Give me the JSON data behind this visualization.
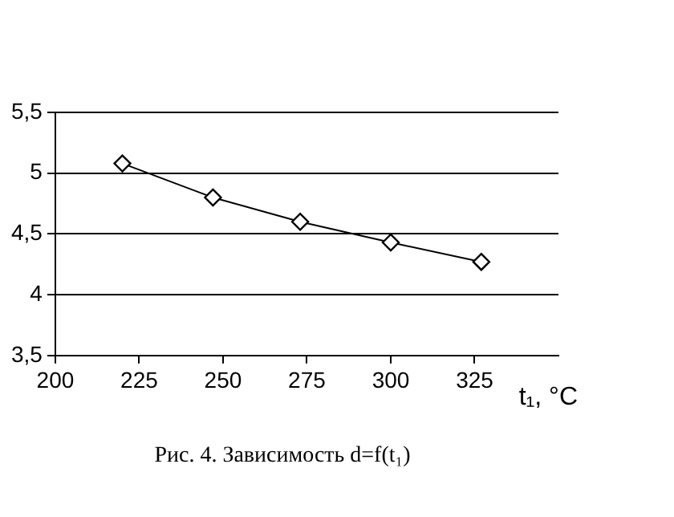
{
  "chart_data": {
    "type": "line",
    "title": "Рис. 4. Зависимость d=f(t₁)",
    "xlabel": "t₁, °C",
    "x": [
      220,
      247,
      273,
      300,
      327
    ],
    "series": [
      {
        "color": "#000000",
        "values": [
          5.08,
          4.8,
          4.6,
          4.43,
          4.27
        ]
      }
    ],
    "xlim": [
      200,
      350
    ],
    "xticks": [
      200,
      225,
      250,
      275,
      300,
      325
    ],
    "ylim": [
      3.5,
      5.5
    ],
    "yticks": [
      {
        "value": 3.5,
        "label": "3,5"
      },
      4,
      {
        "value": 4.5,
        "label": "4,5"
      },
      5,
      {
        "value": 5.5,
        "label": "5,5"
      }
    ],
    "grid": "y",
    "legend": false,
    "marker": "diamond",
    "line_style": "solid"
  }
}
